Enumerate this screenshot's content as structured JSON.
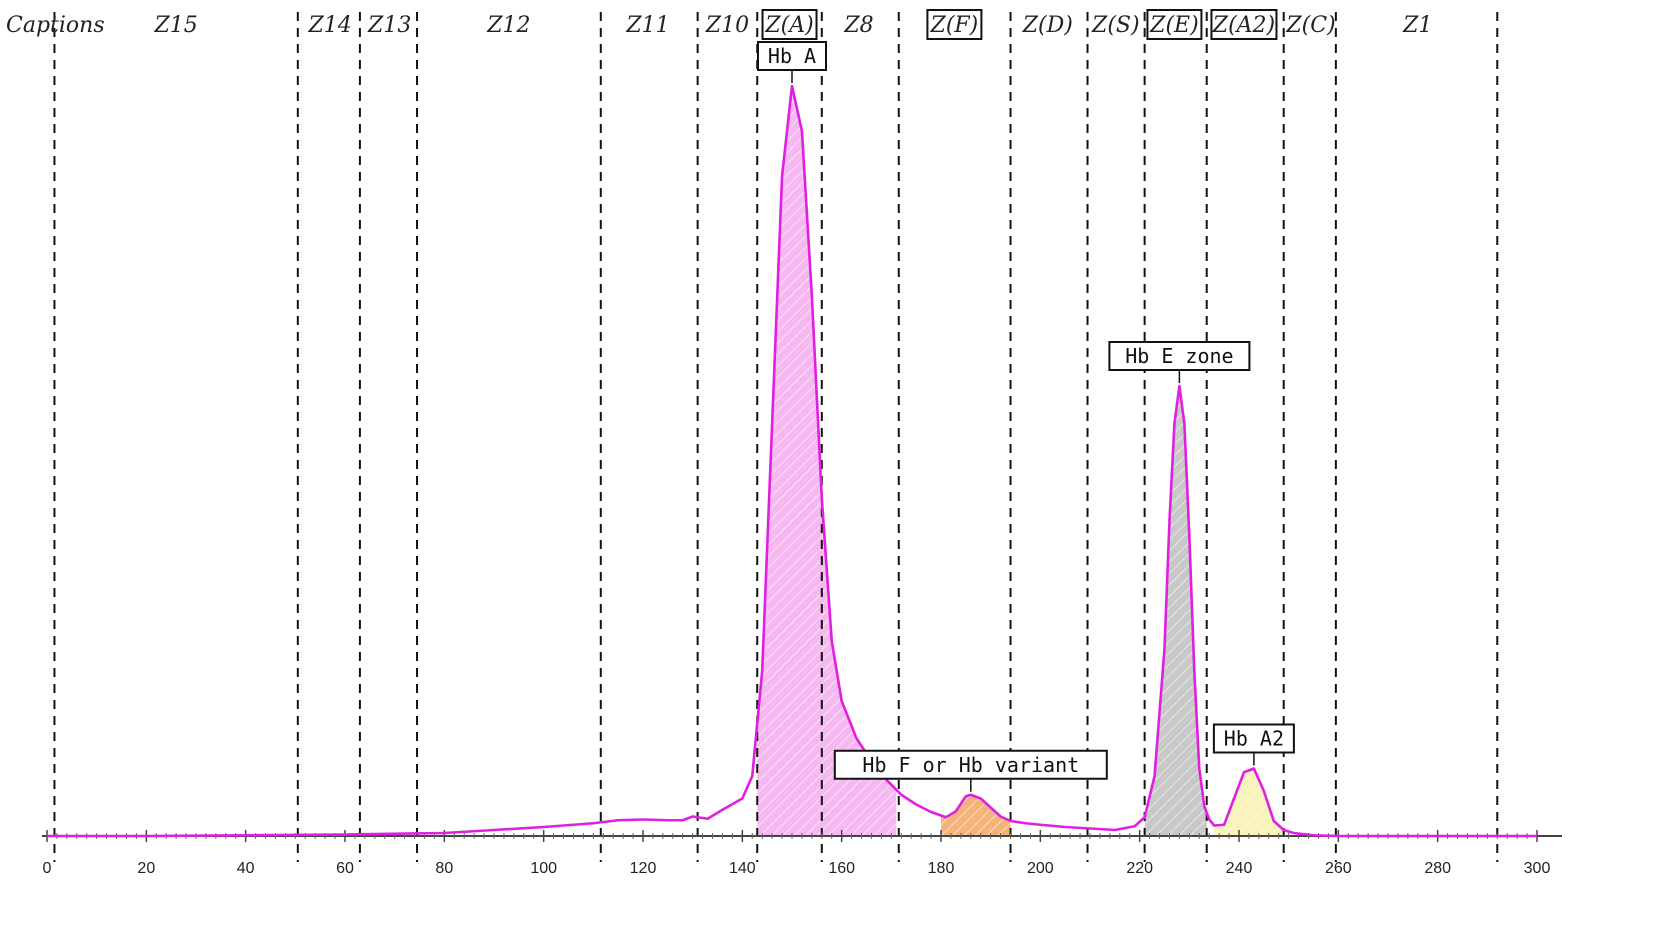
{
  "chart_data": {
    "type": "line",
    "caption_header": "Captions",
    "xlabel": "",
    "ylabel": "",
    "xlim": [
      0,
      300
    ],
    "ylim": [
      0,
      100
    ],
    "x_ticks": [
      0,
      20,
      40,
      60,
      80,
      100,
      120,
      140,
      160,
      180,
      200,
      220,
      240,
      260,
      280,
      300
    ],
    "zone_boundaries": [
      1.5,
      50.5,
      63,
      74.5,
      111.5,
      131,
      143,
      156,
      171.5,
      194,
      209.5,
      221,
      233.5,
      249,
      259.5,
      292
    ],
    "zones": [
      {
        "label": "Z15",
        "center": 26,
        "boxed": false
      },
      {
        "label": "Z14",
        "center": 57,
        "boxed": false
      },
      {
        "label": "Z13",
        "center": 69,
        "boxed": false
      },
      {
        "label": "Z12",
        "center": 93,
        "boxed": false
      },
      {
        "label": "Z11",
        "center": 121,
        "boxed": false
      },
      {
        "label": "Z10",
        "center": 137,
        "boxed": false
      },
      {
        "label": "Z(A)",
        "center": 149.5,
        "boxed": true
      },
      {
        "label": "Z8",
        "center": 163.5,
        "boxed": false
      },
      {
        "label": "Z(F)",
        "center": 182.7,
        "boxed": true
      },
      {
        "label": "Z(D)",
        "center": 201.5,
        "boxed": false
      },
      {
        "label": "Z(S)",
        "center": 215.2,
        "boxed": false
      },
      {
        "label": "Z(E)",
        "center": 227,
        "boxed": true
      },
      {
        "label": "Z(A2)",
        "center": 241,
        "boxed": true
      },
      {
        "label": "Z(C)",
        "center": 254.5,
        "boxed": false
      },
      {
        "label": "Z1",
        "center": 276,
        "boxed": false
      }
    ],
    "peaks": [
      {
        "label": "Hb  A",
        "x": 150,
        "height": 100,
        "range": [
          143,
          171
        ],
        "fill": "#f6b8f0"
      },
      {
        "label": "Hb  F  or  Hb  variant",
        "x": 186,
        "height": 5.5,
        "range": [
          180,
          194
        ],
        "fill": "#f5b37a"
      },
      {
        "label": "Hb  E  zone",
        "x": 228,
        "height": 60,
        "range": [
          221,
          233.5
        ],
        "fill": "#c8c8c8"
      },
      {
        "label": "Hb  A2",
        "x": 243,
        "height": 9,
        "range": [
          235,
          249
        ],
        "fill": "#f8f3b8"
      }
    ],
    "series": [
      {
        "x": [
          0,
          20,
          40,
          60,
          80,
          90,
          100,
          110,
          115,
          120,
          125,
          128,
          130,
          133,
          136,
          140,
          142,
          144,
          146,
          148,
          150,
          152,
          154,
          156,
          158,
          160,
          163,
          166,
          169,
          172,
          175,
          178,
          181,
          183,
          185,
          186,
          188,
          190,
          192,
          194,
          197,
          200,
          205,
          210,
          215,
          219,
          221,
          223,
          225,
          226,
          227,
          228,
          229,
          230,
          231,
          232,
          233,
          234,
          235,
          237,
          239,
          241,
          243,
          245,
          247,
          249,
          251,
          255,
          260,
          280,
          300
        ],
        "y": [
          0,
          0,
          0.1,
          0.2,
          0.4,
          0.8,
          1.2,
          1.7,
          2.1,
          2.2,
          2.1,
          2.1,
          2.6,
          2.3,
          3.5,
          5,
          8,
          22,
          55,
          88,
          100,
          94,
          72,
          45,
          26,
          18,
          13,
          10,
          7.5,
          5.5,
          4.2,
          3.2,
          2.5,
          3.3,
          5.3,
          5.5,
          5,
          3.8,
          2.6,
          2,
          1.7,
          1.5,
          1.2,
          1,
          0.8,
          1.3,
          2.5,
          8,
          25,
          42,
          55,
          60,
          55,
          40,
          22,
          9,
          4,
          2.2,
          1.4,
          1.5,
          5,
          8.5,
          9,
          6,
          2,
          0.8,
          0.4,
          0.1,
          0,
          0,
          0
        ],
        "color": "#e020e0"
      }
    ]
  }
}
